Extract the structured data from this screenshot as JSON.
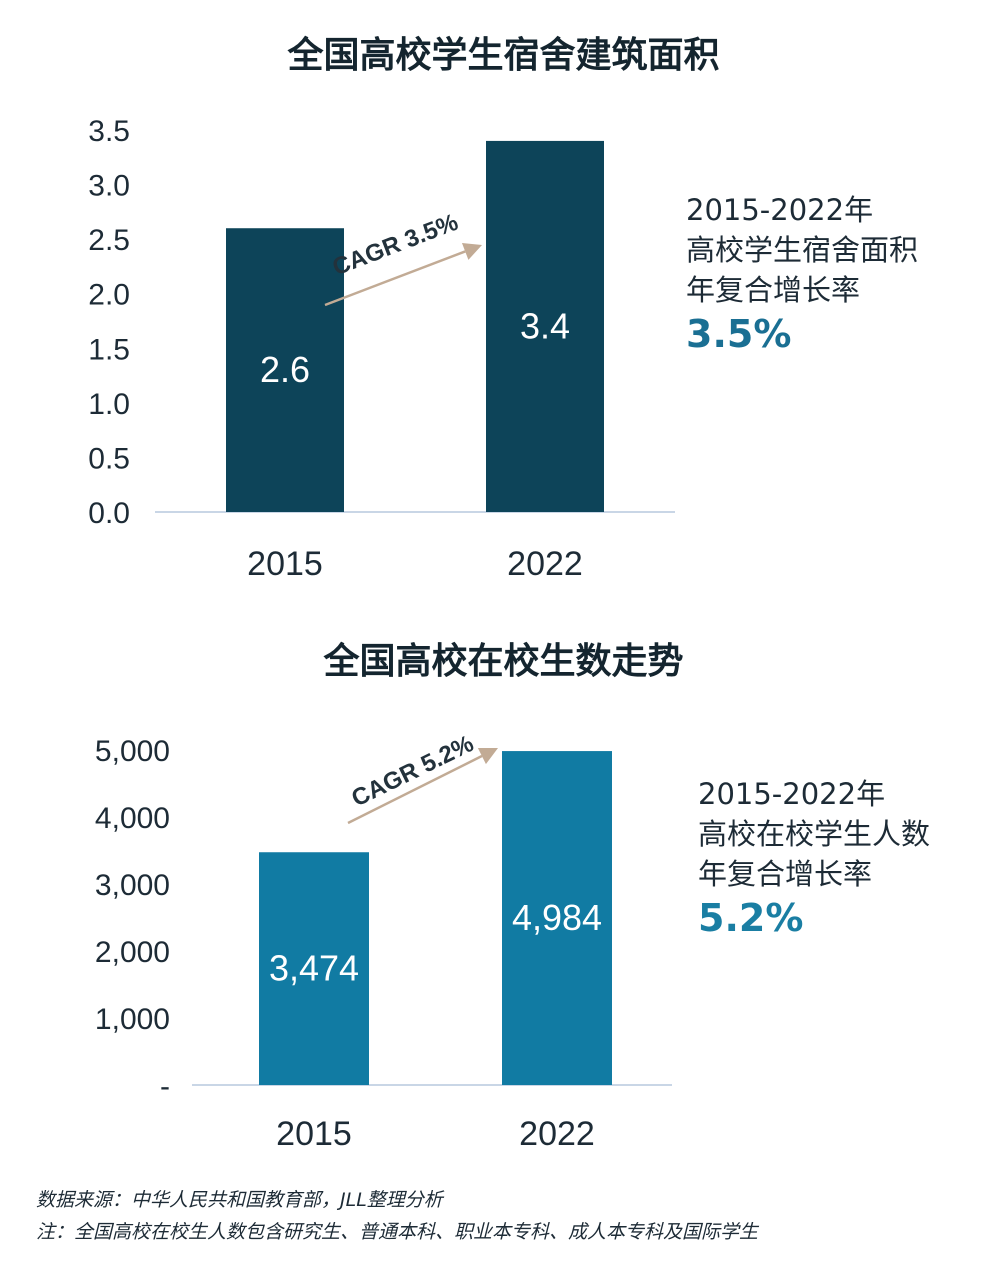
{
  "colors": {
    "chart1_bar": "#0d4459",
    "chart2_bar": "#117ba3",
    "arrow": "#c2ab95",
    "accent1": "#1a6f93",
    "accent2": "#1a7ea3"
  },
  "chart_data": [
    {
      "type": "bar",
      "title": "全国高校学生宿舍建筑面积",
      "categories": [
        "2015",
        "2022"
      ],
      "values": [
        2.6,
        3.4
      ],
      "value_labels": [
        "2.6",
        "3.4"
      ],
      "ylim": [
        0,
        3.5
      ],
      "yticks": [
        0,
        0.5,
        1.0,
        1.5,
        2.0,
        2.5,
        3.0,
        3.5
      ],
      "ytick_labels": [
        "0.0",
        "0.5",
        "1.0",
        "1.5",
        "2.0",
        "2.5",
        "3.0",
        "3.5"
      ],
      "xlabel": "",
      "ylabel": "",
      "grid": false,
      "annotation": "CAGR 3.5%",
      "side_note": [
        "2015-2022年",
        "高校学生宿舍面积",
        "年复合增长率",
        "3.5%"
      ]
    },
    {
      "type": "bar",
      "title": "全国高校在校生数走势",
      "categories": [
        "2015",
        "2022"
      ],
      "values": [
        3474,
        4984
      ],
      "value_labels": [
        "3,474",
        "4,984"
      ],
      "ylim": [
        0,
        5000
      ],
      "yticks": [
        0,
        1000,
        2000,
        3000,
        4000,
        5000
      ],
      "ytick_labels": [
        "-",
        "1,000",
        "2,000",
        "3,000",
        "4,000",
        "5,000"
      ],
      "xlabel": "",
      "ylabel": "",
      "grid": false,
      "annotation": "CAGR 5.2%",
      "side_note": [
        "2015-2022年",
        "高校在校学生人数",
        "年复合增长率",
        "5.2%"
      ]
    }
  ],
  "footer": {
    "source": "数据来源：中华人民共和国教育部，JLL整理分析",
    "note": "注：全国高校在校生人数包含研究生、普通本科、职业本专科、成人本专科及国际学生"
  }
}
